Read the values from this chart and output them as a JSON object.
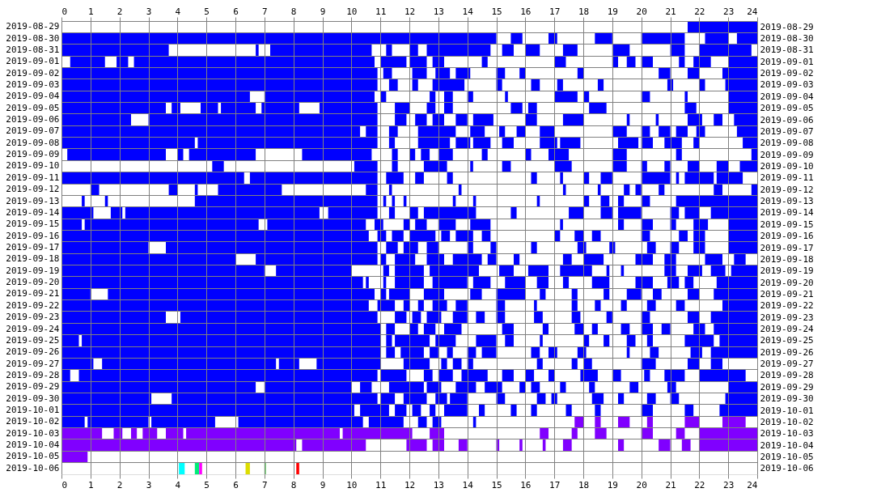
{
  "chart_data": {
    "type": "bar",
    "orientation": "horizontal",
    "grid": true,
    "categories": [
      "2019-08-29",
      "2019-08-30",
      "2019-08-31",
      "2019-09-01",
      "2019-09-02",
      "2019-09-03",
      "2019-09-04",
      "2019-09-05",
      "2019-09-06",
      "2019-09-07",
      "2019-09-08",
      "2019-09-09",
      "2019-09-10",
      "2019-09-11",
      "2019-09-12",
      "2019-09-13",
      "2019-09-14",
      "2019-09-15",
      "2019-09-16",
      "2019-09-17",
      "2019-09-18",
      "2019-09-19",
      "2019-09-20",
      "2019-09-21",
      "2019-09-22",
      "2019-09-23",
      "2019-09-24",
      "2019-09-25",
      "2019-09-26",
      "2019-09-27",
      "2019-09-28",
      "2019-09-29",
      "2019-09-30",
      "2019-10-01",
      "2019-10-02",
      "2019-10-03",
      "2019-10-04",
      "2019-10-05",
      "2019-10-06"
    ],
    "y2_categories": [
      "2019-08-29",
      "2019-08-30",
      "2019-08-31",
      "2019-09-01",
      "2019-09-02",
      "2019-09-03",
      "2019-09-04",
      "2019-09-05",
      "2019-09-06",
      "2019-09-07",
      "2019-09-08",
      "2019-09-09",
      "2019-09-10",
      "2019-09-11",
      "2019-09-12",
      "2019-09-13",
      "2019-09-14",
      "2019-09-15",
      "2019-09-16",
      "2019-09-17",
      "2019-09-18",
      "2019-09-19",
      "2019-09-20",
      "2019-09-21",
      "2019-09-22",
      "2019-09-23",
      "2019-09-24",
      "2019-09-25",
      "2019-09-26",
      "2019-09-27",
      "2019-09-28",
      "2019-09-29",
      "2019-09-30",
      "2019-10-01",
      "2019-10-02",
      "2019-10-03",
      "2019-10-04",
      "2019-10-05",
      "2019-10-06"
    ],
    "xlim": [
      0,
      24
    ],
    "xticks": [
      0,
      1,
      2,
      3,
      4,
      5,
      6,
      7,
      8,
      9,
      10,
      11,
      12,
      13,
      14,
      15,
      16,
      17,
      18,
      19,
      20,
      21,
      22,
      23,
      24
    ],
    "x2lim": [
      0,
      24
    ],
    "x2ticks": [
      0,
      1,
      2,
      3,
      4,
      5,
      6,
      7,
      8,
      9,
      10,
      11,
      12,
      13,
      14,
      15,
      16,
      17,
      18,
      19,
      20,
      21,
      22,
      23,
      24
    ],
    "series": [
      {
        "base": [
          21.6,
          0,
          0,
          0.3,
          0,
          0,
          0,
          0,
          0,
          0,
          0,
          0.2,
          5.2,
          0,
          1,
          0.7,
          0,
          0,
          0,
          0,
          0,
          0,
          0,
          0,
          0,
          0,
          0,
          0,
          0,
          0,
          0,
          0,
          0,
          0,
          0,
          0,
          0,
          0,
          4.05
        ],
        "values": [
          2.4,
          15,
          3.7,
          1.2,
          10.9,
          10.9,
          6.5,
          3.6,
          2.4,
          10.3,
          4.6,
          3.4,
          0.4,
          6.3,
          0.3,
          0.1,
          1.1,
          0.7,
          10.6,
          3,
          6,
          7,
          10.4,
          1,
          10.6,
          3.6,
          11,
          0.6,
          11,
          1.1,
          0.3,
          6.7,
          3.1,
          10.1,
          0.8,
          1.4,
          8.1,
          0.9,
          0.2
        ],
        "colors": [
          "#0000ff",
          "#0000ff",
          "#0000ff",
          "#0000ff",
          "#0000ff",
          "#0000ff",
          "#0000ff",
          "#0000ff",
          "#0000ff",
          "#0000ff",
          "#0000ff",
          "#0000ff",
          "#0000ff",
          "#0000ff",
          "#0000ff",
          "#0000ff",
          "#0000ff",
          "#0000ff",
          "#0000ff",
          "#0000ff",
          "#0000ff",
          "#0000ff",
          "#0000ff",
          "#0000ff",
          "#0000ff",
          "#0000ff",
          "#0000ff",
          "#0000ff",
          "#0000ff",
          "#0000ff",
          "#0000ff",
          "#0000ff",
          "#0000ff",
          "#0000ff",
          "#0000ff",
          "#8000ff",
          "#8000ff",
          "#8000ff",
          "#00ffff"
        ]
      },
      {
        "base": [
          null,
          15.5,
          6.7,
          1.9,
          11.1,
          11.3,
          7,
          3.8,
          3,
          10.5,
          4.7,
          4,
          10.1,
          6.5,
          3.7,
          1.5,
          1.7,
          0.8,
          10.9,
          3.6,
          6.7,
          7.4,
          10.5,
          1.6,
          10.9,
          4.1,
          11.2,
          0.7,
          11.2,
          1.4,
          0.6,
          7,
          3.8,
          10.3,
          0.9,
          1.8,
          8.3,
          null,
          4.6
        ],
        "values": [
          null,
          0.4,
          0.1,
          0.4,
          0.3,
          0.3,
          3.8,
          0.3,
          7.9,
          0.4,
          6.2,
          0.2,
          0.8,
          4.4,
          0.3,
          0.1,
          0.4,
          6,
          0.3,
          7.3,
          4.2,
          2.6,
          0.1,
          9.2,
          0.6,
          6.8,
          0.3,
          10.3,
          0.3,
          6,
          10.3,
          3,
          7.1,
          1,
          2.1,
          0.3,
          2.2,
          null,
          0.15
        ],
        "colors": [
          null,
          "#0000ff",
          "#0000ff",
          "#0000ff",
          "#0000ff",
          "#0000ff",
          "#0000ff",
          "#0000ff",
          "#0000ff",
          "#0000ff",
          "#0000ff",
          "#0000ff",
          "#0000ff",
          "#0000ff",
          "#0000ff",
          "#0000ff",
          "#0000ff",
          "#0000ff",
          "#0000ff",
          "#0000ff",
          "#0000ff",
          "#0000ff",
          "#0000ff",
          "#0000ff",
          "#0000ff",
          "#0000ff",
          "#0000ff",
          "#0000ff",
          "#0000ff",
          "#0000ff",
          "#0000ff",
          "#0000ff",
          "#0000ff",
          "#0000ff",
          "#0000ff",
          "#8000ff",
          "#8000ff",
          null,
          "#00ee77"
        ]
      },
      {
        "base": [
          null,
          16.8,
          7.2,
          2.5,
          12.1,
          12.1,
          11,
          4.8,
          11.5,
          11.3,
          11.3,
          4.4,
          11.4,
          11.2,
          4.6,
          4.6,
          2.2,
          7.1,
          11.4,
          11.2,
          11,
          11.1,
          11.1,
          11,
          11.8,
          11.5,
          12,
          11.2,
          11.7,
          7.5,
          11,
          10.3,
          11,
          11.5,
          3.1,
          2.4,
          11.9,
          null,
          4.75
        ],
        "values": [
          null,
          0.3,
          3.5,
          8.3,
          0.5,
          0.2,
          0.2,
          0.6,
          0.4,
          0.3,
          0.2,
          2.3,
          0.2,
          0.6,
          0.1,
          6.3,
          6.7,
          3.4,
          0.4,
          0.4,
          0.2,
          0.2,
          0.1,
          0.2,
          0.2,
          0.4,
          0.3,
          0.2,
          0.8,
          0.7,
          0.9,
          0.4,
          0.5,
          0.4,
          2.2,
          0.2,
          0.7,
          null,
          0.1
        ],
        "colors": [
          null,
          "#0000ff",
          "#0000ff",
          "#0000ff",
          "#0000ff",
          "#0000ff",
          "#0000ff",
          "#0000ff",
          "#0000ff",
          "#0000ff",
          "#0000ff",
          "#0000ff",
          "#0000ff",
          "#0000ff",
          "#0000ff",
          "#0000ff",
          "#0000ff",
          "#0000ff",
          "#0000ff",
          "#0000ff",
          "#0000ff",
          "#0000ff",
          "#0000ff",
          "#0000ff",
          "#0000ff",
          "#0000ff",
          "#0000ff",
          "#0000ff",
          "#0000ff",
          "#0000ff",
          "#0000ff",
          "#0000ff",
          "#0000ff",
          "#0000ff",
          "#0000ff",
          "#8000ff",
          "#8000ff",
          null,
          "#ff00ff"
        ]
      },
      {
        "base": [
          null,
          18.4,
          11.2,
          11,
          12.9,
          12.8,
          12.7,
          5.5,
          12.2,
          12.3,
          12.3,
          8.3,
          12.5,
          12.2,
          5.4,
          11.1,
          9.2,
          10.8,
          12,
          11.8,
          11.5,
          11.5,
          11.5,
          11.3,
          12.3,
          12.1,
          12.5,
          11.5,
          12.7,
          8.8,
          12.5,
          11.3,
          11.8,
          12.1,
          6.1,
          2.8,
          12.8,
          null,
          6.35
        ],
        "values": [
          null,
          0.6,
          0.2,
          0.9,
          0.5,
          1.1,
          0.2,
          1.2,
          0.4,
          1.3,
          1.1,
          2.4,
          0.8,
          0.3,
          2.2,
          0.1,
          1.7,
          0.3,
          0.9,
          0.5,
          0.7,
          1,
          1,
          0.7,
          0.2,
          0.3,
          0.4,
          1.2,
          0.3,
          2.2,
          0.3,
          1.2,
          0.8,
          0.3,
          4.3,
          0.5,
          0.4,
          null,
          0.15
        ],
        "colors": [
          null,
          "#0000ff",
          "#0000ff",
          "#0000ff",
          "#0000ff",
          "#0000ff",
          "#0000ff",
          "#0000ff",
          "#0000ff",
          "#0000ff",
          "#0000ff",
          "#0000ff",
          "#0000ff",
          "#0000ff",
          "#0000ff",
          "#0000ff",
          "#0000ff",
          "#0000ff",
          "#0000ff",
          "#0000ff",
          "#0000ff",
          "#0000ff",
          "#0000ff",
          "#0000ff",
          "#0000ff",
          "#0000ff",
          "#0000ff",
          "#0000ff",
          "#0000ff",
          "#0000ff",
          "#0000ff",
          "#0000ff",
          "#0000ff",
          "#0000ff",
          "#0000ff",
          "#8000ff",
          "#8000ff",
          null,
          "#dddd00"
        ]
      },
      {
        "base": [
          null,
          20,
          12,
          12,
          13.6,
          15,
          13.2,
          6.9,
          12.8,
          14.1,
          13.6,
          11.4,
          14.1,
          13.3,
          10.5,
          11.4,
          11.3,
          11.8,
          13.1,
          12.6,
          12.6,
          12.7,
          12.8,
          12.5,
          12.8,
          12.6,
          13.2,
          12.9,
          13.3,
          11.8,
          13,
          12.6,
          12.9,
          12.7,
          10.6,
          3.6,
          13.7,
          null,
          7
        ],
        "values": [
          null,
          1.5,
          0.3,
          0.6,
          0.5,
          0.2,
          0.3,
          1.3,
          0.4,
          0.5,
          0.5,
          0.2,
          0.1,
          0.2,
          0.4,
          0.1,
          0.2,
          0.2,
          0.3,
          0.4,
          0.6,
          1.7,
          1.2,
          0.7,
          0.5,
          0.5,
          0.6,
          0.7,
          0.2,
          0.9,
          0.5,
          0.5,
          0.4,
          0.2,
          1.2,
          0.6,
          0.3,
          null,
          0.05
        ],
        "colors": [
          null,
          "#0000ff",
          "#0000ff",
          "#0000ff",
          "#0000ff",
          "#0000ff",
          "#0000ff",
          "#0000ff",
          "#0000ff",
          "#0000ff",
          "#0000ff",
          "#0000ff",
          "#0000ff",
          "#0000ff",
          "#0000ff",
          "#0000ff",
          "#0000ff",
          "#0000ff",
          "#0000ff",
          "#0000ff",
          "#0000ff",
          "#0000ff",
          "#0000ff",
          "#0000ff",
          "#0000ff",
          "#0000ff",
          "#0000ff",
          "#0000ff",
          "#0000ff",
          "#0000ff",
          "#0000ff",
          "#0000ff",
          "#0000ff",
          "#0000ff",
          "#0000ff",
          "#8000ff",
          "#8000ff",
          null,
          "#33cc33"
        ]
      },
      {
        "base": [
          null,
          22.2,
          12.6,
          12.8,
          15,
          16.2,
          14,
          8.9,
          13.6,
          15.1,
          14.2,
          12,
          15.2,
          16.2,
          11.3,
          11.8,
          12,
          12.2,
          13.6,
          14,
          13.5,
          15.1,
          14.2,
          14.1,
          13.6,
          13.5,
          15.2,
          14.3,
          14,
          13.1,
          13.8,
          13.6,
          13.4,
          13.2,
          12.3,
          4.3,
          15,
          null,
          8.1
        ],
        "values": [
          null,
          0.8,
          2.2,
          0.4,
          0.3,
          0.3,
          0.2,
          2,
          0.4,
          0.2,
          0.6,
          0.2,
          0.3,
          0.2,
          0.1,
          0.1,
          0.3,
          0.4,
          0.6,
          0.2,
          1,
          0.5,
          0.6,
          0.4,
          0.4,
          0.5,
          0.4,
          0.7,
          0.3,
          0.2,
          0.9,
          0.7,
          0.6,
          0.8,
          0.3,
          5.3,
          0.1,
          null,
          0.1
        ],
        "colors": [
          null,
          "#0000ff",
          "#0000ff",
          "#0000ff",
          "#0000ff",
          "#0000ff",
          "#0000ff",
          "#0000ff",
          "#0000ff",
          "#0000ff",
          "#0000ff",
          "#0000ff",
          "#0000ff",
          "#0000ff",
          "#0000ff",
          "#0000ff",
          "#0000ff",
          "#0000ff",
          "#0000ff",
          "#0000ff",
          "#0000ff",
          "#0000ff",
          "#0000ff",
          "#0000ff",
          "#0000ff",
          "#0000ff",
          "#0000ff",
          "#0000ff",
          "#0000ff",
          "#0000ff",
          "#0000ff",
          "#0000ff",
          "#0000ff",
          "#0000ff",
          "#0000ff",
          "#8000ff",
          "#8000ff",
          null,
          "#ff0000"
        ]
      },
      {
        "base": [
          null,
          23.3,
          15.2,
          14.5,
          15.8,
          17.1,
          15.3,
          11.5,
          14.2,
          15.7,
          15.2,
          12.4,
          17,
          17.2,
          13.7,
          13.5,
          12.5,
          13,
          14.5,
          14.8,
          14.7,
          16.1,
          15.3,
          15,
          15,
          14.3,
          16.6,
          15.3,
          14.5,
          13.5,
          15.2,
          14.6,
          15,
          14.4,
          12.8,
          9.7,
          15.8,
          null,
          null
        ],
        "values": [
          null,
          0.7,
          0.4,
          0.2,
          0.2,
          0.2,
          0.1,
          0.5,
          0.7,
          0.3,
          0.4,
          0.3,
          0.6,
          0.1,
          0.1,
          0.1,
          1.8,
          0.6,
          0.3,
          0.2,
          0.3,
          0.7,
          0.7,
          1,
          0.3,
          0.3,
          0.2,
          0.3,
          0.5,
          0.3,
          0.4,
          0.6,
          0.3,
          0.2,
          0.3,
          2.4,
          0.1,
          null,
          null
        ],
        "colors": [
          null,
          "#0000ff",
          "#0000ff",
          "#0000ff",
          "#0000ff",
          "#0000ff",
          "#0000ff",
          "#0000ff",
          "#0000ff",
          "#0000ff",
          "#0000ff",
          "#0000ff",
          "#0000ff",
          "#0000ff",
          "#0000ff",
          "#0000ff",
          "#0000ff",
          "#0000ff",
          "#0000ff",
          "#0000ff",
          "#0000ff",
          "#0000ff",
          "#0000ff",
          "#0000ff",
          "#0000ff",
          "#0000ff",
          "#0000ff",
          "#0000ff",
          "#0000ff",
          "#0000ff",
          "#0000ff",
          "#0000ff",
          "#0000ff",
          "#0000ff",
          "#0000ff",
          "#8000ff",
          "#8000ff",
          null,
          null
        ]
      },
      {
        "base": [
          null,
          null,
          16,
          17,
          17.8,
          18.5,
          17,
          12.6,
          16,
          16.5,
          16.5,
          13,
          19,
          18,
          17.3,
          14.2,
          15.5,
          14.1,
          17,
          16.2,
          15.6,
          17.2,
          16.4,
          16.5,
          16.3,
          15,
          17.7,
          16.5,
          16.2,
          14,
          16,
          15.8,
          16.4,
          15.5,
          14.2,
          12.7,
          16.6,
          null,
          null
        ],
        "values": [
          null,
          null,
          0.5,
          0.4,
          0.2,
          0.2,
          0.8,
          0.3,
          0.4,
          0.5,
          0.6,
          0.5,
          0.5,
          0.2,
          0.1,
          0.1,
          0.2,
          0.7,
          0.2,
          0.2,
          0.2,
          1.1,
          0.4,
          0.2,
          0.1,
          0.3,
          0.3,
          0.1,
          0.3,
          0.2,
          0.3,
          0.2,
          0.3,
          0.2,
          0.1,
          0.5,
          0.1,
          null,
          null
        ],
        "colors": [
          null,
          null,
          "#0000ff",
          "#0000ff",
          "#0000ff",
          "#0000ff",
          "#0000ff",
          "#0000ff",
          "#0000ff",
          "#0000ff",
          "#0000ff",
          "#0000ff",
          "#0000ff",
          "#0000ff",
          "#0000ff",
          "#0000ff",
          "#0000ff",
          "#0000ff",
          "#0000ff",
          "#0000ff",
          "#0000ff",
          "#0000ff",
          "#0000ff",
          "#0000ff",
          "#0000ff",
          "#0000ff",
          "#0000ff",
          "#0000ff",
          "#0000ff",
          "#0000ff",
          "#0000ff",
          "#0000ff",
          "#0000ff",
          "#0000ff",
          "#0000ff",
          "#8000ff",
          "#8000ff",
          null,
          null
        ]
      },
      {
        "base": [
          null,
          null,
          17.3,
          19,
          20.6,
          20.9,
          18,
          13.2,
          17.3,
          19,
          17.2,
          14.5,
          20,
          18.6,
          18.5,
          16.4,
          17.5,
          17.2,
          17.7,
          17.8,
          17.3,
          18.8,
          17.3,
          17.6,
          17.6,
          16.3,
          18.3,
          18,
          16.8,
          16.4,
          16.8,
          16.2,
          16.9,
          16.2,
          17.7,
          16.5,
          17.3,
          null,
          null
        ],
        "values": [
          null,
          null,
          0.5,
          0.2,
          0.4,
          0.2,
          0.2,
          0.3,
          0.7,
          0.5,
          0.7,
          0.2,
          0.2,
          0.4,
          0.1,
          0.1,
          0.5,
          0.1,
          0.3,
          0.3,
          0.3,
          0.1,
          0.2,
          0.2,
          0.2,
          0.3,
          0.2,
          0.2,
          0.3,
          0.2,
          0.2,
          0.3,
          0.2,
          0.2,
          0.3,
          0.3,
          0.3,
          null,
          null
        ],
        "colors": [
          null,
          null,
          "#0000ff",
          "#0000ff",
          "#0000ff",
          "#0000ff",
          "#0000ff",
          "#0000ff",
          "#0000ff",
          "#0000ff",
          "#0000ff",
          "#0000ff",
          "#0000ff",
          "#0000ff",
          "#0000ff",
          "#0000ff",
          "#0000ff",
          "#0000ff",
          "#0000ff",
          "#0000ff",
          "#0000ff",
          "#0000ff",
          "#0000ff",
          "#0000ff",
          "#0000ff",
          "#0000ff",
          "#0000ff",
          "#0000ff",
          "#0000ff",
          "#0000ff",
          "#0000ff",
          "#0000ff",
          "#0000ff",
          "#0000ff",
          "#8000ff",
          "#8000ff",
          "#8000ff",
          null,
          null
        ]
      },
      {
        "base": [
          null,
          null,
          19,
          19.5,
          21.6,
          22,
          20,
          15.5,
          19.5,
          20,
          19.2,
          16,
          20.8,
          20,
          19.4,
          18,
          18.6,
          19.2,
          18.3,
          18.9,
          18,
          19.3,
          18.3,
          18.7,
          18.4,
          17.6,
          19.3,
          18.7,
          17.8,
          17.6,
          17.9,
          17.2,
          18.3,
          17.4,
          18.4,
          17.6,
          19.2,
          null,
          null
        ],
        "values": [
          null,
          null,
          0.6,
          0.3,
          0.4,
          0.2,
          0.3,
          0.4,
          0.1,
          0.3,
          0.7,
          0.2,
          0.2,
          1,
          0.2,
          0.2,
          0.4,
          0.2,
          0.3,
          0.2,
          0.7,
          0.1,
          0.6,
          0.2,
          0.2,
          0.3,
          0.3,
          0.2,
          0.3,
          0.2,
          0.6,
          0.2,
          0.4,
          0.2,
          0.2,
          0.2,
          0.2,
          null,
          null
        ],
        "colors": [
          null,
          null,
          "#0000ff",
          "#0000ff",
          "#0000ff",
          "#0000ff",
          "#0000ff",
          "#0000ff",
          "#0000ff",
          "#0000ff",
          "#0000ff",
          "#0000ff",
          "#0000ff",
          "#0000ff",
          "#0000ff",
          "#0000ff",
          "#0000ff",
          "#0000ff",
          "#0000ff",
          "#0000ff",
          "#0000ff",
          "#0000ff",
          "#0000ff",
          "#0000ff",
          "#0000ff",
          "#0000ff",
          "#0000ff",
          "#0000ff",
          "#0000ff",
          "#0000ff",
          "#0000ff",
          "#0000ff",
          "#0000ff",
          "#0000ff",
          "#8000ff",
          "#8000ff",
          "#8000ff",
          null,
          null
        ]
      },
      {
        "base": [
          null,
          null,
          21,
          20,
          22.8,
          22.9,
          21.5,
          16.1,
          20.5,
          20.6,
          20,
          16.8,
          21.6,
          21.2,
          19.8,
          18.6,
          19.2,
          20,
          20,
          20.2,
          19.8,
          20.8,
          19.8,
          19.5,
          19.3,
          18.8,
          20,
          19.5,
          19.5,
          18,
          19,
          18.2,
          19.2,
          18.4,
          19.2,
          18.4,
          20.6,
          null,
          null
        ],
        "values": [
          null,
          null,
          0.5,
          0.4,
          1.2,
          1.1,
          0.1,
          0.3,
          0.1,
          0.4,
          0.4,
          0.7,
          0.4,
          0.1,
          0.2,
          0.3,
          0.8,
          0.4,
          0.3,
          0.3,
          0.6,
          0.4,
          0.6,
          0.5,
          0.2,
          0.2,
          0.4,
          0.3,
          0.1,
          0.3,
          0.3,
          0.2,
          0.2,
          0.2,
          0.4,
          0.4,
          0.4,
          null,
          null
        ],
        "colors": [
          null,
          null,
          "#0000ff",
          "#0000ff",
          "#0000ff",
          "#0000ff",
          "#0000ff",
          "#0000ff",
          "#0000ff",
          "#0000ff",
          "#0000ff",
          "#0000ff",
          "#0000ff",
          "#0000ff",
          "#0000ff",
          "#0000ff",
          "#0000ff",
          "#0000ff",
          "#0000ff",
          "#0000ff",
          "#0000ff",
          "#0000ff",
          "#0000ff",
          "#0000ff",
          "#0000ff",
          "#0000ff",
          "#0000ff",
          "#0000ff",
          "#0000ff",
          "#0000ff",
          "#0000ff",
          "#0000ff",
          "#0000ff",
          "#0000ff",
          "#8000ff",
          "#8000ff",
          "#8000ff",
          null,
          null
        ]
      },
      {
        "base": [
          null,
          null,
          22,
          21.3,
          null,
          null,
          23,
          18.2,
          21.6,
          21.2,
          20.8,
          19,
          22.6,
          21.5,
          20.6,
          19.2,
          21,
          21,
          21.3,
          21,
          20.8,
          21.6,
          20.9,
          20.4,
          20.2,
          20,
          20.7,
          20.2,
          20.3,
          20,
          20.1,
          19.6,
          20.2,
          20,
          20.2,
          20,
          21.4,
          null,
          null
        ],
        "values": [
          null,
          null,
          1.8,
          0.2,
          null,
          null,
          1,
          0.6,
          0.5,
          0.4,
          0.6,
          0.5,
          0.4,
          1,
          0.2,
          0.2,
          0.3,
          0.2,
          0.3,
          0.3,
          0.4,
          0.5,
          0.4,
          0.3,
          0.3,
          0.3,
          0.3,
          0.2,
          0.3,
          0.5,
          0.2,
          0.3,
          0.3,
          0.4,
          0.2,
          0.4,
          0.3,
          null,
          null
        ],
        "colors": [
          null,
          null,
          "#0000ff",
          "#0000ff",
          null,
          null,
          "#0000ff",
          "#0000ff",
          "#0000ff",
          "#0000ff",
          "#0000ff",
          "#0000ff",
          "#0000ff",
          "#0000ff",
          "#0000ff",
          "#0000ff",
          "#0000ff",
          "#0000ff",
          "#0000ff",
          "#0000ff",
          "#0000ff",
          "#0000ff",
          "#0000ff",
          "#0000ff",
          "#0000ff",
          "#0000ff",
          "#0000ff",
          "#0000ff",
          "#0000ff",
          "#0000ff",
          "#0000ff",
          "#0000ff",
          "#0000ff",
          "#0000ff",
          "#8000ff",
          "#8000ff",
          "#8000ff",
          null,
          null
        ]
      },
      {
        "base": [
          null,
          null,
          null,
          21.8,
          null,
          null,
          null,
          21.5,
          22.5,
          21.9,
          21.8,
          21.2,
          23.4,
          22.6,
          22.5,
          20,
          21.5,
          21.8,
          21.8,
          21.8,
          22.2,
          22.4,
          21.5,
          21.6,
          21.2,
          21.6,
          21.8,
          21.5,
          21.7,
          21.6,
          20.8,
          20.9,
          21,
          21.5,
          21.5,
          21.2,
          22,
          null,
          null
        ],
        "values": [
          null,
          null,
          null,
          0.6,
          null,
          null,
          null,
          0.4,
          0.3,
          0.3,
          0.2,
          0.2,
          0.6,
          0.9,
          0.3,
          0.3,
          0.5,
          0.5,
          0.4,
          0.4,
          0.6,
          0.5,
          0.3,
          0.4,
          0.3,
          0.4,
          0.4,
          1,
          0.4,
          0.4,
          0.7,
          0.3,
          0.3,
          0.3,
          0.5,
          0.3,
          2,
          null,
          null
        ],
        "colors": [
          null,
          null,
          null,
          "#0000ff",
          null,
          null,
          null,
          "#0000ff",
          "#0000ff",
          "#0000ff",
          "#0000ff",
          "#0000ff",
          "#0000ff",
          "#0000ff",
          "#0000ff",
          "#0000ff",
          "#0000ff",
          "#0000ff",
          "#0000ff",
          "#0000ff",
          "#0000ff",
          "#0000ff",
          "#0000ff",
          "#0000ff",
          "#0000ff",
          "#0000ff",
          "#0000ff",
          "#0000ff",
          "#0000ff",
          "#0000ff",
          "#0000ff",
          "#0000ff",
          "#0000ff",
          "#0000ff",
          "#8000ff",
          "#8000ff",
          "#8000ff",
          null,
          null
        ]
      },
      {
        "base": [
          null,
          null,
          null,
          23,
          null,
          null,
          null,
          23,
          23.2,
          23.3,
          23.5,
          23.8,
          null,
          null,
          23.8,
          21.2,
          22.4,
          23,
          23,
          23,
          23.2,
          23.1,
          22.6,
          22.5,
          22.8,
          22.4,
          22.5,
          22.7,
          22.4,
          22.4,
          22,
          23,
          22.9,
          22.7,
          22.8,
          22,
          null,
          null,
          null
        ],
        "values": [
          null,
          null,
          null,
          1,
          null,
          null,
          null,
          1,
          0.8,
          0.7,
          0.5,
          0.2,
          null,
          null,
          0.2,
          2.8,
          1.6,
          1,
          1,
          1,
          0.4,
          0.9,
          1.4,
          1.5,
          1.2,
          1.6,
          1.5,
          1.3,
          1.6,
          0.4,
          1.6,
          1,
          1.1,
          1.3,
          0.8,
          2,
          null,
          null,
          null
        ],
        "colors": [
          null,
          null,
          null,
          "#0000ff",
          null,
          null,
          null,
          "#0000ff",
          "#0000ff",
          "#0000ff",
          "#0000ff",
          "#0000ff",
          null,
          null,
          "#0000ff",
          "#0000ff",
          "#0000ff",
          "#0000ff",
          "#0000ff",
          "#0000ff",
          "#0000ff",
          "#0000ff",
          "#0000ff",
          "#0000ff",
          "#0000ff",
          "#0000ff",
          "#0000ff",
          "#0000ff",
          "#0000ff",
          "#0000ff",
          "#0000ff",
          "#0000ff",
          "#0000ff",
          "#0000ff",
          "#8000ff",
          "#8000ff",
          null,
          null,
          null
        ]
      }
    ]
  }
}
